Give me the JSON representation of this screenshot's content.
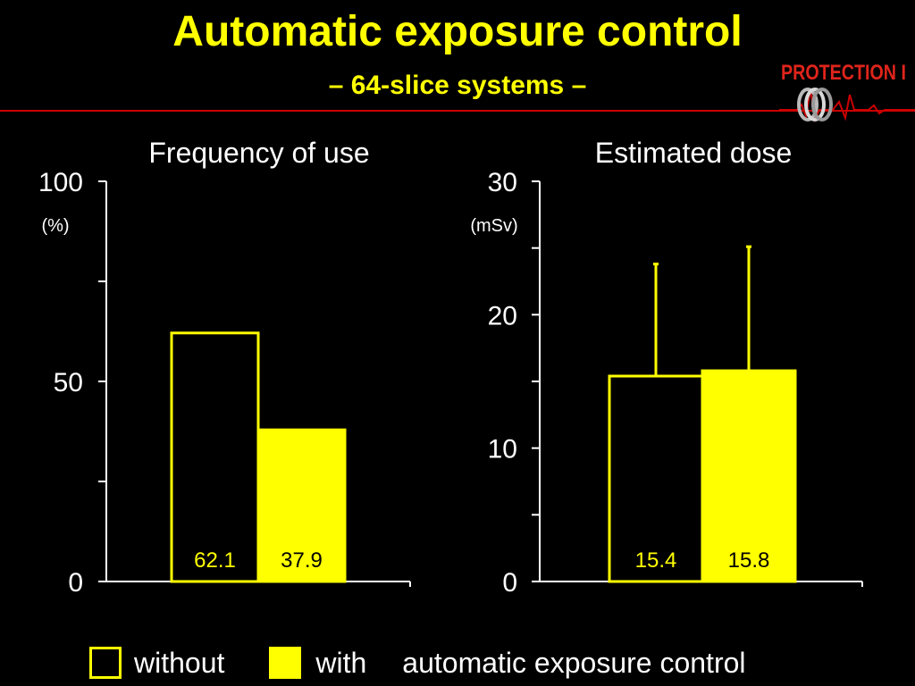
{
  "slide": {
    "title": "Automatic exposure control",
    "subtitle": "– 64-slice systems –",
    "logo_text": "PROTECTION I"
  },
  "colors": {
    "background": "#000000",
    "title": "#ffff00",
    "accent_red": "#cc0000",
    "bar_outline": "#ffff00",
    "bar_fill": "#ffff00",
    "bar_label_on_dark": "#ffff00",
    "bar_label_on_fill": "#000000",
    "axis": "#ffffff",
    "text": "#ffffff"
  },
  "legend": {
    "without_label": "without",
    "with_label": "with",
    "suffix": "automatic exposure control"
  },
  "chart_data": [
    {
      "type": "bar",
      "title": "Frequency of use",
      "ylabel": "(%)",
      "ylim": [
        0,
        100
      ],
      "yticks": [
        0,
        50,
        100
      ],
      "yticks_minor": [
        25,
        75
      ],
      "categories": [
        "without",
        "with"
      ],
      "values": [
        62.1,
        37.9
      ],
      "data_labels": [
        "62.1",
        "37.9"
      ],
      "grid": false,
      "legend": "bottom"
    },
    {
      "type": "bar",
      "title": "Estimated dose",
      "ylabel": "(mSv)",
      "ylim": [
        0,
        30
      ],
      "yticks": [
        0,
        10,
        20,
        30
      ],
      "yticks_minor": [
        5,
        15,
        25
      ],
      "categories": [
        "without",
        "with"
      ],
      "values": [
        15.4,
        15.8
      ],
      "error_upper": [
        23.8,
        25.1
      ],
      "data_labels": [
        "15.4",
        "15.8"
      ],
      "grid": false,
      "legend": "bottom"
    }
  ]
}
